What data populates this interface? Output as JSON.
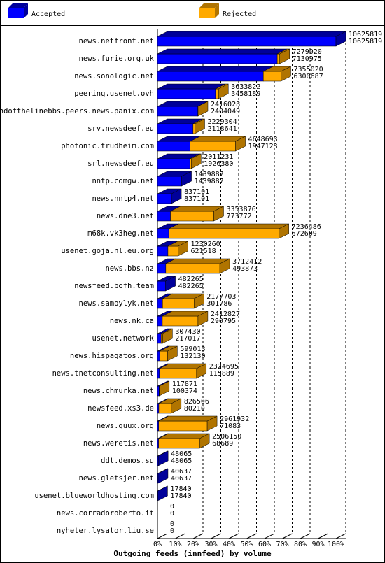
{
  "chart_data": {
    "type": "bar3d-stacked-horizontal",
    "title": "Outgoing feeds (innfeed) by volume",
    "categories": [
      "news.netfront.net",
      "news.furie.org.uk",
      "news.sonologic.net",
      "peering.usenet.ovh",
      "endofthelinebbs.peers.news.panix.com",
      "srv.newsdeef.eu",
      "photonic.trudheim.com",
      "srl.newsdeef.eu",
      "nntp.comgw.net",
      "news.nntp4.net",
      "news.dne3.net",
      "m68k.vk3heg.net",
      "usenet.goja.nl.eu.org",
      "news.bbs.nz",
      "newsfeed.bofh.team",
      "news.samoylyk.net",
      "news.nk.ca",
      "usenet.network",
      "news.hispagatos.org",
      "news.tnetconsulting.net",
      "news.chmurka.net",
      "newsfeed.xs3.de",
      "news.quux.org",
      "news.weretis.net",
      "ddt.demos.su",
      "news.gletsjer.net",
      "usenet.blueworldhosting.com",
      "news.corradoroberto.it",
      "nyheter.lysator.liu.se"
    ],
    "offered": [
      10625819,
      7279020,
      7355020,
      3633822,
      2416028,
      2229304,
      4648693,
      2011231,
      1439887,
      837101,
      3353876,
      7236486,
      1230260,
      3712412,
      482265,
      2177703,
      2412827,
      307430,
      599013,
      2324695,
      117871,
      826506,
      2961932,
      2506150,
      48065,
      40637,
      17840,
      0,
      0
    ],
    "series": [
      {
        "name": "Accepted",
        "color": "#0000ff",
        "side": "#00009a",
        "values": [
          10625819,
          7130975,
          6300687,
          3458189,
          2404049,
          2118641,
          1947123,
          1926380,
          1439887,
          837101,
          773772,
          672609,
          621518,
          493873,
          482265,
          301786,
          290795,
          217017,
          132130,
          115889,
          100374,
          80210,
          71083,
          68689,
          48065,
          40637,
          17840,
          0,
          0
        ]
      },
      {
        "name": "Rejected",
        "color": "#ffaa00",
        "side": "#b07400",
        "values": [
          0,
          148045,
          1054333,
          175633,
          11979,
          110663,
          2701570,
          84851,
          0,
          0,
          2580104,
          6563877,
          608742,
          3218539,
          0,
          1875917,
          2122032,
          90413,
          466883,
          2208806,
          17497,
          746296,
          2890849,
          2437461,
          0,
          0,
          0,
          0,
          0
        ]
      }
    ],
    "xlim": [
      0,
      10625819
    ],
    "xticks": [
      {
        "value": 0,
        "label": "0%"
      },
      {
        "value": 1062581.9,
        "label": "10%"
      },
      {
        "value": 2125163.8,
        "label": "20%"
      },
      {
        "value": 3187745.7,
        "label": "30%"
      },
      {
        "value": 4250327.6,
        "label": "40%"
      },
      {
        "value": 5312909.5,
        "label": "50%"
      },
      {
        "value": 6375491.4,
        "label": "60%"
      },
      {
        "value": 7438073.3,
        "label": "70%"
      },
      {
        "value": 8500655.2,
        "label": "80%"
      },
      {
        "value": 9563237.1,
        "label": "90%"
      },
      {
        "value": 10625819,
        "label": "100%"
      }
    ],
    "grid": true
  }
}
